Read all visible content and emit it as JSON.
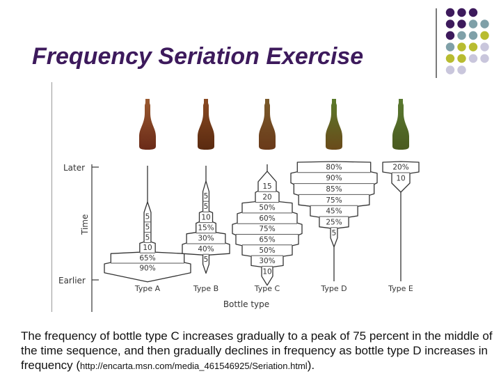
{
  "slide": {
    "title": "Frequency Seriation Exercise",
    "caption_main": "The frequency of bottle type C increases gradually to a peak of 75 percent in the middle of the time sequence, and then gradually declines in frequency as bottle type D increases in frequency (",
    "caption_url": "http://encarta.msn.com/media_461546925/Seriation.html",
    "caption_end": ")."
  },
  "decoration": {
    "dot_colors": [
      "#3d1a5c",
      "#7fa0a8",
      "#b8bc30",
      "#c9c6dc"
    ]
  },
  "figure": {
    "axis_later": "Later",
    "axis_time": "Time",
    "axis_earlier": "Earlier",
    "x_axis_title": "Bottle type",
    "bottles": [
      {
        "type": "Type A",
        "color_top": "#9a5a30",
        "color_bottom": "#6a2a18",
        "values": [
          "5",
          "5",
          "5",
          "10",
          "65%",
          "90%"
        ]
      },
      {
        "type": "Type B",
        "color_top": "#8a4a22",
        "color_bottom": "#5a2a10",
        "values": [
          "5",
          "5",
          "10",
          "15%",
          "30%",
          "40%",
          "5"
        ]
      },
      {
        "type": "Type C",
        "color_top": "#7a5a2a",
        "color_bottom": "#6a3a1a",
        "values": [
          "15",
          "20",
          "50%",
          "60%",
          "75%",
          "65%",
          "50%",
          "30%",
          "10"
        ]
      },
      {
        "type": "Type D",
        "color_top": "#5a7a2a",
        "color_bottom": "#6a4a1a",
        "values": [
          "80%",
          "90%",
          "85%",
          "75%",
          "45%",
          "25%",
          "5"
        ]
      },
      {
        "type": "Type E",
        "color_top": "#5a7a30",
        "color_bottom": "#4a5a20",
        "values": [
          "20%",
          "10"
        ]
      }
    ]
  }
}
